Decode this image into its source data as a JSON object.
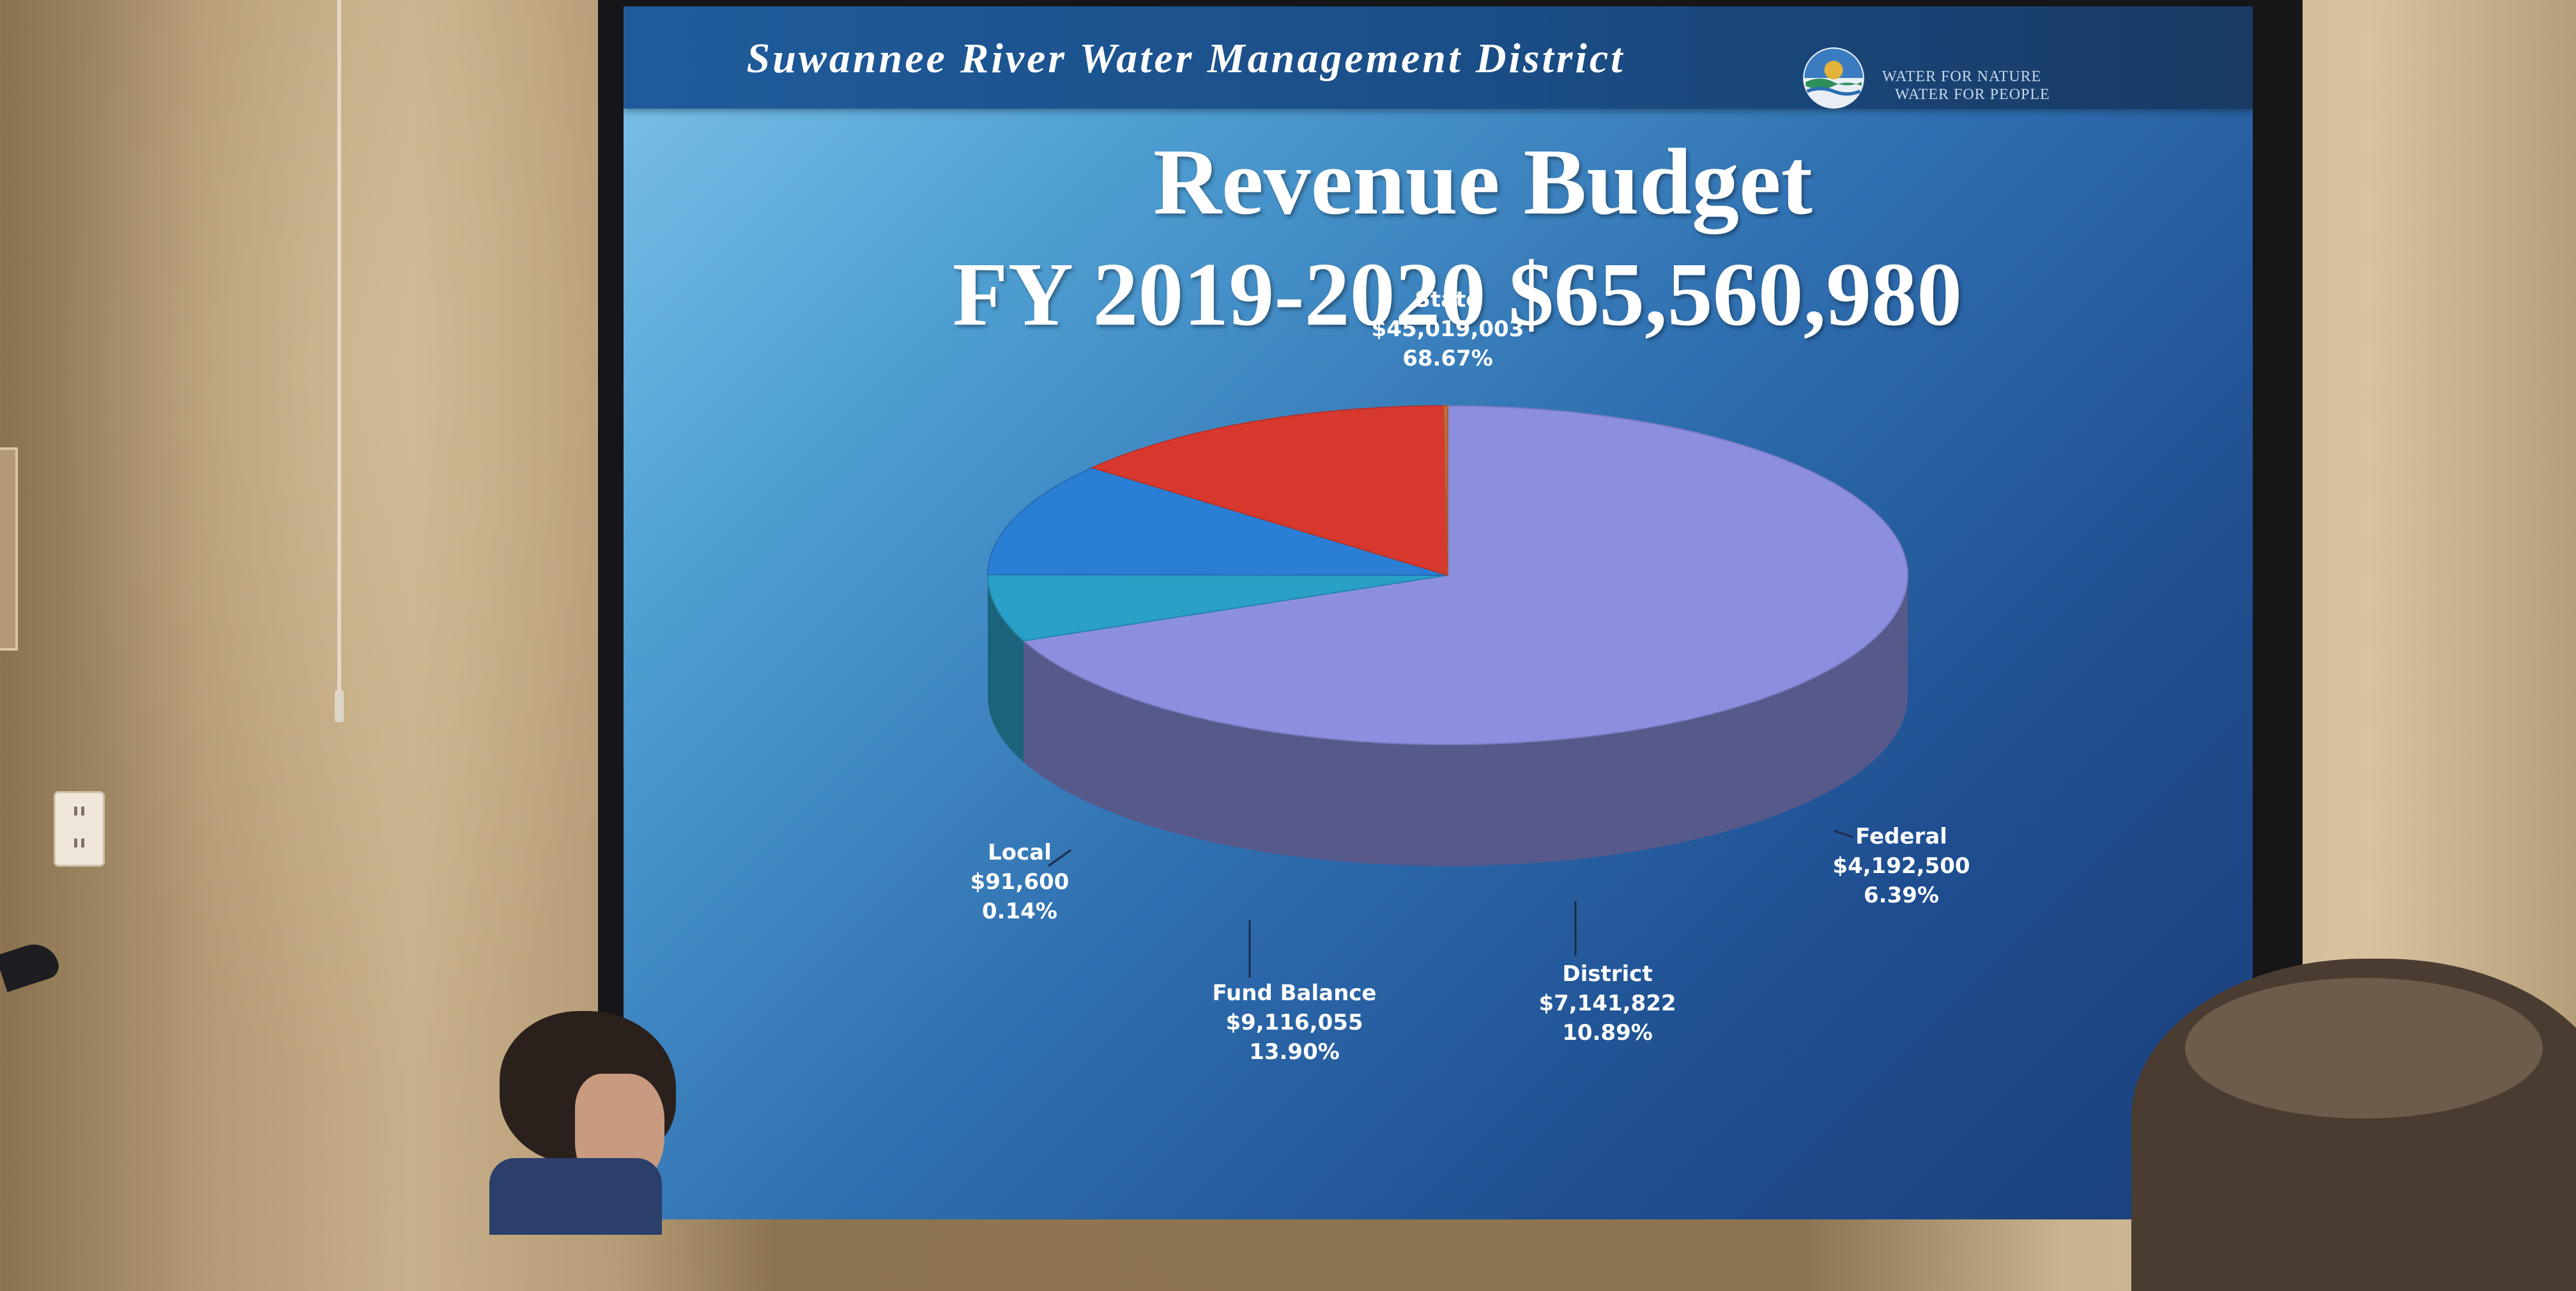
{
  "header": {
    "district_name": "Suwannee River Water Management District",
    "logo_line1": "WATER FOR NATURE",
    "logo_line2": "WATER FOR PEOPLE"
  },
  "slide": {
    "title_line1": "Revenue Budget",
    "title_line2": "FY 2019-2020 $65,560,980"
  },
  "chart_data": {
    "type": "pie",
    "title": "Revenue Budget FY 2019-2020 $65,560,980",
    "slices": [
      {
        "label": "State",
        "value": 45019003,
        "value_text": "$45,019,003",
        "percent": 68.67,
        "percent_text": "68.67%",
        "color": "#8c8fe0"
      },
      {
        "label": "Federal",
        "value": 4192500,
        "value_text": "$4,192,500",
        "percent": 6.39,
        "percent_text": "6.39%",
        "color": "#2a9fc7"
      },
      {
        "label": "District",
        "value": 7141822,
        "value_text": "$7,141,822",
        "percent": 10.89,
        "percent_text": "10.89%",
        "color": "#2a7fd4"
      },
      {
        "label": "Fund Balance",
        "value": 9116055,
        "value_text": "$9,116,055",
        "percent": 13.9,
        "percent_text": "13.90%",
        "color": "#d8392f"
      },
      {
        "label": "Local",
        "value": 91600,
        "value_text": "$91,600",
        "percent": 0.14,
        "percent_text": "0.14%",
        "color": "#c96a3a"
      }
    ]
  },
  "colors": {
    "slide_bg_light": "#7ec3ea",
    "slide_bg_dark": "#1c3f7c",
    "banner": "#1a4d86"
  }
}
